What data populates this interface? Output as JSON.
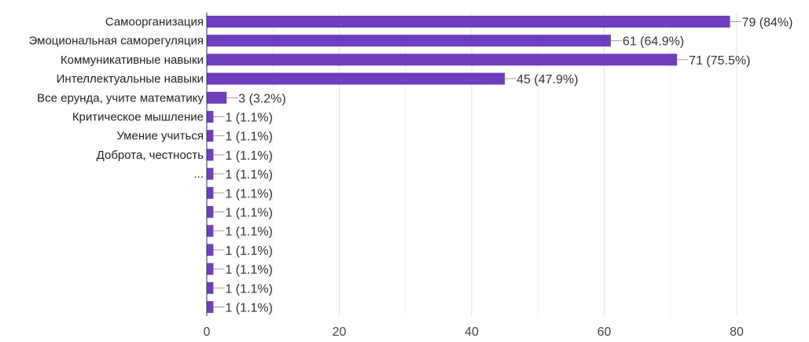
{
  "chart_data": {
    "type": "bar",
    "orientation": "horizontal",
    "categories": [
      "Самоорганизация",
      "Эмоциональная саморегуляция",
      "Коммуникативные навыки",
      "Интеллектуальные навыки",
      "Все ерунда, учите математику",
      "Критическое мышление",
      "Умение учиться",
      "Доброта, честность",
      "...",
      "",
      "",
      "",
      "",
      "",
      "",
      ""
    ],
    "values": [
      79,
      61,
      71,
      45,
      3,
      1,
      1,
      1,
      1,
      1,
      1,
      1,
      1,
      1,
      1,
      1
    ],
    "value_labels": [
      "79 (84%)",
      "61 (64.9%)",
      "71 (75.5%)",
      "45 (47.9%)",
      "3 (3.2%)",
      "1 (1.1%)",
      "1 (1.1%)",
      "1 (1.1%)",
      "1 (1.1%)",
      "1 (1.1%)",
      "1 (1.1%)",
      "1 (1.1%)",
      "1 (1.1%)",
      "1 (1.1%)",
      "1 (1.1%)",
      "1 (1.1%)"
    ],
    "xticks": [
      0,
      20,
      40,
      60,
      80
    ],
    "xlim": [
      0,
      80
    ],
    "grid": true,
    "bar_color": "#6f3dbf",
    "title": "",
    "xlabel": "",
    "ylabel": ""
  }
}
